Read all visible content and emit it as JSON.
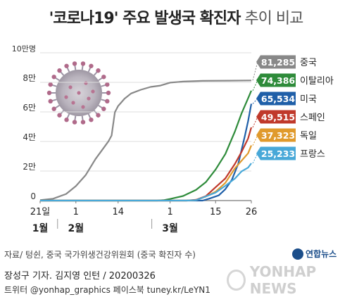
{
  "title": {
    "main": "'코로나19' 주요 발생국 확진자",
    "sub": "추이 비교"
  },
  "chart_data": {
    "type": "line",
    "title": "'코로나19' 주요 발생국 확진자 추이 비교",
    "y_unit_label": "10만명",
    "yticks": [
      "0",
      "2만",
      "4만",
      "6만",
      "8만"
    ],
    "ylim": [
      0,
      100000
    ],
    "yticks_values": [
      0,
      20000,
      40000,
      60000,
      80000
    ],
    "x_day_index_range": [
      0,
      65
    ],
    "xticks": [
      {
        "label": "21일",
        "day": 0
      },
      {
        "label": "1",
        "day": 11
      },
      {
        "label": "14",
        "day": 24
      },
      {
        "label": "1",
        "day": 40
      },
      {
        "label": "15",
        "day": 54
      },
      {
        "label": "26",
        "day": 65
      }
    ],
    "month_labels": [
      {
        "label": "1월",
        "day": 0
      },
      {
        "label": "2월",
        "day": 11
      },
      {
        "label": "3월",
        "day": 40
      }
    ],
    "grid": "horizontal",
    "series": [
      {
        "name": "중국",
        "final_label": "81,285",
        "color": "#888888",
        "points": [
          [
            0,
            300
          ],
          [
            4,
            1300
          ],
          [
            8,
            4500
          ],
          [
            11,
            9800
          ],
          [
            14,
            17200
          ],
          [
            17,
            28000
          ],
          [
            20,
            37000
          ],
          [
            21,
            40000
          ],
          [
            22,
            44000
          ],
          [
            23,
            59800
          ],
          [
            24,
            64000
          ],
          [
            26,
            69000
          ],
          [
            28,
            72500
          ],
          [
            31,
            75000
          ],
          [
            34,
            76900
          ],
          [
            37,
            77800
          ],
          [
            40,
            79800
          ],
          [
            44,
            80500
          ],
          [
            50,
            81000
          ],
          [
            58,
            81150
          ],
          [
            65,
            81285
          ]
        ]
      },
      {
        "name": "이탈리아",
        "final_label": "74,386",
        "color": "#2e8b3a",
        "points": [
          [
            0,
            0
          ],
          [
            36,
            0
          ],
          [
            38,
            300
          ],
          [
            40,
            1100
          ],
          [
            44,
            3100
          ],
          [
            48,
            7300
          ],
          [
            51,
            12500
          ],
          [
            54,
            21000
          ],
          [
            57,
            31500
          ],
          [
            60,
            47000
          ],
          [
            62,
            59100
          ],
          [
            64,
            69200
          ],
          [
            65,
            74386
          ]
        ]
      },
      {
        "name": "미국",
        "final_label": "65,534",
        "color": "#1f5fa8",
        "points": [
          [
            0,
            0
          ],
          [
            50,
            0
          ],
          [
            52,
            1300
          ],
          [
            55,
            3500
          ],
          [
            57,
            7700
          ],
          [
            59,
            14000
          ],
          [
            61,
            25000
          ],
          [
            63,
            43700
          ],
          [
            64,
            53700
          ],
          [
            65,
            65534
          ]
        ]
      },
      {
        "name": "스페인",
        "final_label": "49,515",
        "color": "#c0392b",
        "points": [
          [
            0,
            0
          ],
          [
            45,
            0
          ],
          [
            48,
            500
          ],
          [
            51,
            3000
          ],
          [
            54,
            9000
          ],
          [
            57,
            15000
          ],
          [
            60,
            25000
          ],
          [
            62,
            33000
          ],
          [
            64,
            42000
          ],
          [
            65,
            49515
          ]
        ]
      },
      {
        "name": "독일",
        "final_label": "37,323",
        "color": "#e09a2c",
        "points": [
          [
            0,
            0
          ],
          [
            45,
            0
          ],
          [
            48,
            300
          ],
          [
            51,
            2700
          ],
          [
            54,
            6000
          ],
          [
            57,
            12000
          ],
          [
            60,
            22000
          ],
          [
            62,
            27000
          ],
          [
            64,
            32000
          ],
          [
            65,
            37323
          ]
        ]
      },
      {
        "name": "프랑스",
        "final_label": "25,233",
        "color": "#48a8d8",
        "points": [
          [
            0,
            0
          ],
          [
            45,
            0
          ],
          [
            48,
            300
          ],
          [
            51,
            2800
          ],
          [
            54,
            5400
          ],
          [
            57,
            10000
          ],
          [
            60,
            15000
          ],
          [
            62,
            19800
          ],
          [
            64,
            22300
          ],
          [
            65,
            25233
          ]
        ]
      }
    ]
  },
  "source": "자료/ 텅쉰, 중국 국가위생건강위원회 (중국 확진자 수)",
  "credits": {
    "line1": "장성구 기자. 김지영 인턴 / 20200326",
    "line2": "트위터 @yonhap_graphics  페이스북 tuney.kr/LeYN1"
  },
  "logo": {
    "brand": "연합뉴스",
    "watermark": "YONHAP NEWS"
  }
}
